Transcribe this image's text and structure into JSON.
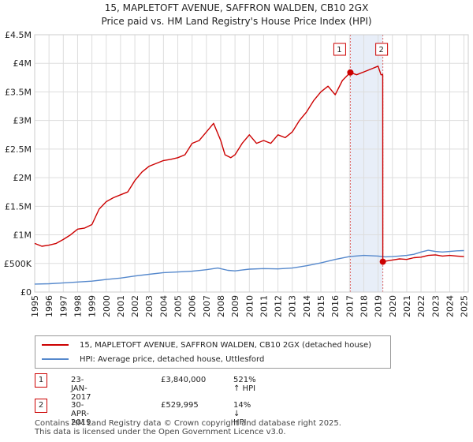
{
  "title_line1": "15, MAPLETOFT AVENUE, SAFFRON WALDEN, CB10 2GX",
  "title_line2": "Price paid vs. HM Land Registry's House Price Index (HPI)",
  "legend": {
    "property": "15, MAPLETOFT AVENUE, SAFFRON WALDEN, CB10 2GX (detached house)",
    "hpi": "HPI: Average price, detached house, Uttlesford"
  },
  "transactions": [
    {
      "num": "1",
      "date": "23-JAN-2017",
      "price": "£3,840,000",
      "hpi": "521% ↑ HPI"
    },
    {
      "num": "2",
      "date": "30-APR-2019",
      "price": "£529,995",
      "hpi": "14% ↓ HPI"
    }
  ],
  "footer": {
    "line1": "Contains HM Land Registry data © Crown copyright and database right 2025.",
    "line2": "This data is licensed under the Open Government Licence v3.0."
  },
  "colors": {
    "property": "#cc0000",
    "hpi": "#5588cc",
    "grid": "#dddddd",
    "shade": "#e8eef8"
  },
  "chart_data": {
    "type": "line",
    "title": "15, MAPLETOFT AVENUE, SAFFRON WALDEN, CB10 2GX",
    "subtitle": "Price paid vs. HM Land Registry's House Price Index (HPI)",
    "xlim": [
      1995,
      2025.3
    ],
    "ylim": [
      0,
      4500000
    ],
    "x_ticks": [
      "1995",
      "1996",
      "1997",
      "1998",
      "1999",
      "2000",
      "2001",
      "2002",
      "2003",
      "2004",
      "2005",
      "2006",
      "2007",
      "2008",
      "2009",
      "2010",
      "2011",
      "2012",
      "2013",
      "2014",
      "2015",
      "2016",
      "2017",
      "2018",
      "2019",
      "2020",
      "2021",
      "2022",
      "2023",
      "2024",
      "2025"
    ],
    "y_ticks": [
      {
        "value": 0,
        "label": "£0"
      },
      {
        "value": 500000,
        "label": "£500K"
      },
      {
        "value": 1000000,
        "label": "£1M"
      },
      {
        "value": 1500000,
        "label": "£1.5M"
      },
      {
        "value": 2000000,
        "label": "£2M"
      },
      {
        "value": 2500000,
        "label": "£2.5M"
      },
      {
        "value": 3000000,
        "label": "£3M"
      },
      {
        "value": 3500000,
        "label": "£3.5M"
      },
      {
        "value": 4000000,
        "label": "£4M"
      },
      {
        "value": 4500000,
        "label": "£4.5M"
      }
    ],
    "grid": true,
    "series": [
      {
        "name": "15, MAPLETOFT AVENUE, SAFFRON WALDEN, CB10 2GX (detached house)",
        "x": [
          1995.0,
          1995.5,
          1996.0,
          1996.5,
          1997.0,
          1997.5,
          1998.0,
          1998.5,
          1999.0,
          1999.5,
          2000.0,
          2000.5,
          2001.0,
          2001.5,
          2002.0,
          2002.5,
          2003.0,
          2003.5,
          2004.0,
          2004.5,
          2005.0,
          2005.5,
          2006.0,
          2006.5,
          2007.0,
          2007.5,
          2008.0,
          2008.3,
          2008.7,
          2009.0,
          2009.5,
          2010.0,
          2010.5,
          2011.0,
          2011.5,
          2012.0,
          2012.5,
          2013.0,
          2013.5,
          2014.0,
          2014.5,
          2015.0,
          2015.5,
          2016.0,
          2016.5,
          2017.06,
          2017.5,
          2018.0,
          2018.5,
          2019.0,
          2019.2,
          2019.32,
          2019.33,
          2019.5,
          2020.0,
          2020.5,
          2021.0,
          2021.5,
          2022.0,
          2022.5,
          2023.0,
          2023.5,
          2024.0,
          2024.5,
          2025.0
        ],
        "values": [
          850000,
          800000,
          820000,
          850000,
          920000,
          1000000,
          1100000,
          1120000,
          1180000,
          1450000,
          1580000,
          1650000,
          1700000,
          1750000,
          1950000,
          2100000,
          2200000,
          2250000,
          2300000,
          2320000,
          2350000,
          2400000,
          2600000,
          2650000,
          2800000,
          2950000,
          2650000,
          2400000,
          2350000,
          2400000,
          2600000,
          2750000,
          2600000,
          2650000,
          2600000,
          2750000,
          2700000,
          2800000,
          3000000,
          3150000,
          3350000,
          3500000,
          3600000,
          3450000,
          3700000,
          3840000,
          3800000,
          3850000,
          3900000,
          3950000,
          3800000,
          3800000,
          529995,
          540000,
          560000,
          580000,
          570000,
          600000,
          610000,
          640000,
          650000,
          630000,
          640000,
          630000,
          620000
        ]
      },
      {
        "name": "HPI: Average price, detached house, Uttlesford",
        "x": [
          1995.0,
          1996.0,
          1997.0,
          1998.0,
          1999.0,
          2000.0,
          2001.0,
          2002.0,
          2003.0,
          2004.0,
          2005.0,
          2006.0,
          2007.0,
          2007.8,
          2008.5,
          2009.0,
          2009.5,
          2010.0,
          2011.0,
          2012.0,
          2013.0,
          2014.0,
          2015.0,
          2016.0,
          2017.0,
          2018.0,
          2019.0,
          2019.5,
          2020.0,
          2021.0,
          2021.5,
          2022.0,
          2022.5,
          2023.0,
          2023.5,
          2024.0,
          2024.5,
          2025.0
        ],
        "values": [
          140000,
          145000,
          160000,
          175000,
          190000,
          220000,
          245000,
          280000,
          310000,
          340000,
          350000,
          365000,
          390000,
          420000,
          380000,
          370000,
          385000,
          400000,
          410000,
          405000,
          420000,
          460000,
          510000,
          570000,
          620000,
          640000,
          630000,
          615000,
          620000,
          640000,
          660000,
          700000,
          730000,
          710000,
          700000,
          710000,
          720000,
          725000
        ]
      }
    ],
    "annotations": [
      {
        "label": "1",
        "x": 2017.06,
        "value": 3840000
      },
      {
        "label": "2",
        "x": 2019.33,
        "value": 529995
      }
    ]
  }
}
